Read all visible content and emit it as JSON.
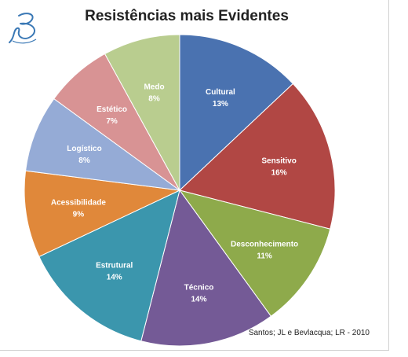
{
  "chart_data": {
    "type": "pie",
    "title": "Resistências mais Evidentes",
    "start_angle_deg": 0,
    "direction": "clockwise",
    "slices": [
      {
        "label": "Cultural",
        "value": 13,
        "display": "13%",
        "color": "#4a72b0"
      },
      {
        "label": "Sensitivo",
        "value": 16,
        "display": "16%",
        "color": "#b14744"
      },
      {
        "label": "Desconhecimento",
        "value": 11,
        "display": "11%",
        "color": "#8eaa4b"
      },
      {
        "label": "Técnico",
        "value": 14,
        "display": "14%",
        "color": "#745a96"
      },
      {
        "label": "Estrutural",
        "value": 14,
        "display": "14%",
        "color": "#3b96ad"
      },
      {
        "label": "Acessibilidade",
        "value": 9,
        "display": "9%",
        "color": "#e0883a"
      },
      {
        "label": "Logístico",
        "value": 8,
        "display": "8%",
        "color": "#95abd6"
      },
      {
        "label": "Estético",
        "value": 7,
        "display": "7%",
        "color": "#d89394"
      },
      {
        "label": "Medo",
        "value": 8,
        "display": "8%",
        "color": "#b9cd8f"
      }
    ]
  },
  "source": "Santos; JL e Bevlacqua; LR - 2010",
  "logo_icon": "script-b-logo-icon"
}
